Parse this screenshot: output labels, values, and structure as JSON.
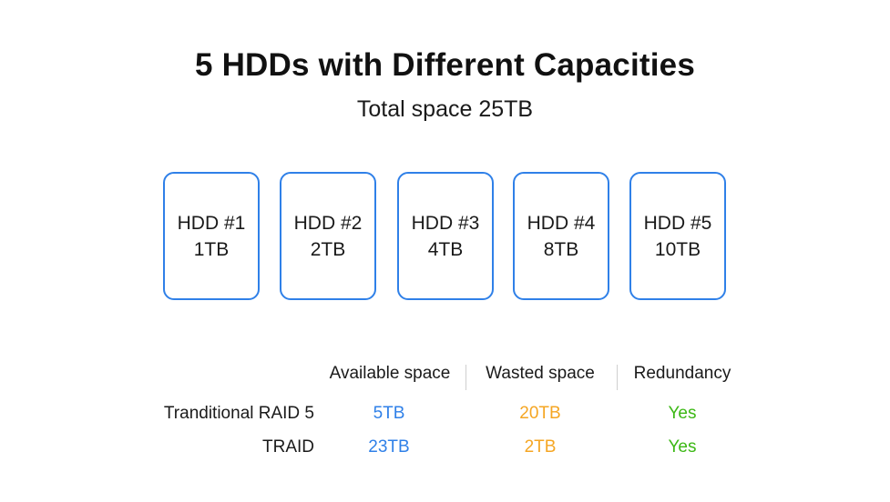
{
  "title": "5 HDDs with Different Capacities",
  "subtitle": "Total space 25TB",
  "colors": {
    "hdd_border": "#2f80e8",
    "available": "#2f80e8",
    "wasted": "#f5a623",
    "redundancy": "#3cb815"
  },
  "hdds": [
    {
      "name": "HDD #1",
      "capacity": "1TB"
    },
    {
      "name": "HDD #2",
      "capacity": "2TB"
    },
    {
      "name": "HDD #3",
      "capacity": "4TB"
    },
    {
      "name": "HDD #4",
      "capacity": "8TB"
    },
    {
      "name": "HDD #5",
      "capacity": "10TB"
    }
  ],
  "table": {
    "headers": [
      "Available space",
      "Wasted space",
      "Redundancy"
    ],
    "rows": [
      {
        "label": "Tranditional RAID 5",
        "available": "5TB",
        "wasted": "20TB",
        "redundancy": "Yes"
      },
      {
        "label": "TRAID",
        "available": "23TB",
        "wasted": "2TB",
        "redundancy": "Yes"
      }
    ]
  }
}
